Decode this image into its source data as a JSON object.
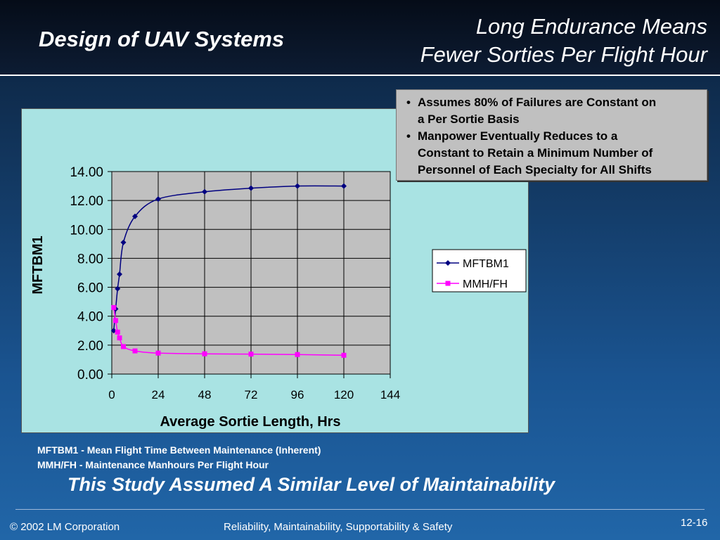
{
  "header": {
    "title_left": "Design of UAV Systems",
    "title_right_line1": "Long Endurance Means",
    "title_right_line2": "Fewer Sorties Per Flight Hour"
  },
  "bullets": [
    {
      "line1": "Assumes 80% of Failures are Constant on",
      "line2": "a Per Sortie Basis",
      "line3": ""
    },
    {
      "line1": "Manpower Eventually Reduces to a",
      "line2": "Constant to Retain a Minimum Number of",
      "line3": "Personnel of Each Specialty for All Shifts"
    }
  ],
  "bullet_glyph": "•",
  "chart_data": {
    "type": "line",
    "xlabel": "Average Sortie Length, Hrs",
    "ylabel": "MFTBM1",
    "xlim": [
      0,
      144
    ],
    "ylim": [
      0,
      14
    ],
    "x_ticks": [
      "0",
      "24",
      "48",
      "72",
      "96",
      "120",
      "144"
    ],
    "y_ticks": [
      "0.00",
      "2.00",
      "4.00",
      "6.00",
      "8.00",
      "10.00",
      "12.00",
      "14.00"
    ],
    "grid": true,
    "legend_position": "right",
    "series": [
      {
        "name": "MFTBM1",
        "color": "#000080",
        "marker": "diamond",
        "x": [
          1,
          2,
          3,
          4,
          6,
          12,
          24,
          48,
          72,
          96,
          120
        ],
        "y": [
          3.0,
          4.5,
          5.9,
          6.9,
          9.1,
          10.9,
          12.1,
          12.6,
          12.85,
          13.0,
          13.0
        ]
      },
      {
        "name": "MMH/FH",
        "color": "#ff00ff",
        "marker": "square",
        "x": [
          1,
          2,
          3,
          4,
          6,
          12,
          24,
          48,
          72,
          96,
          120
        ],
        "y": [
          4.6,
          3.7,
          2.9,
          2.5,
          1.9,
          1.6,
          1.45,
          1.4,
          1.38,
          1.35,
          1.3
        ]
      }
    ]
  },
  "definitions": [
    "MFTBM1 - Mean Flight Time Between Maintenance (Inherent)",
    "MMH/FH - Maintenance Manhours Per Flight Hour"
  ],
  "conclusion": "This Study Assumed A Similar Level of Maintainability",
  "footer": {
    "copyright": "© 2002 LM Corporation",
    "subject": "Reliability, Maintainability, Supportability & Safety",
    "page": "12-16"
  }
}
